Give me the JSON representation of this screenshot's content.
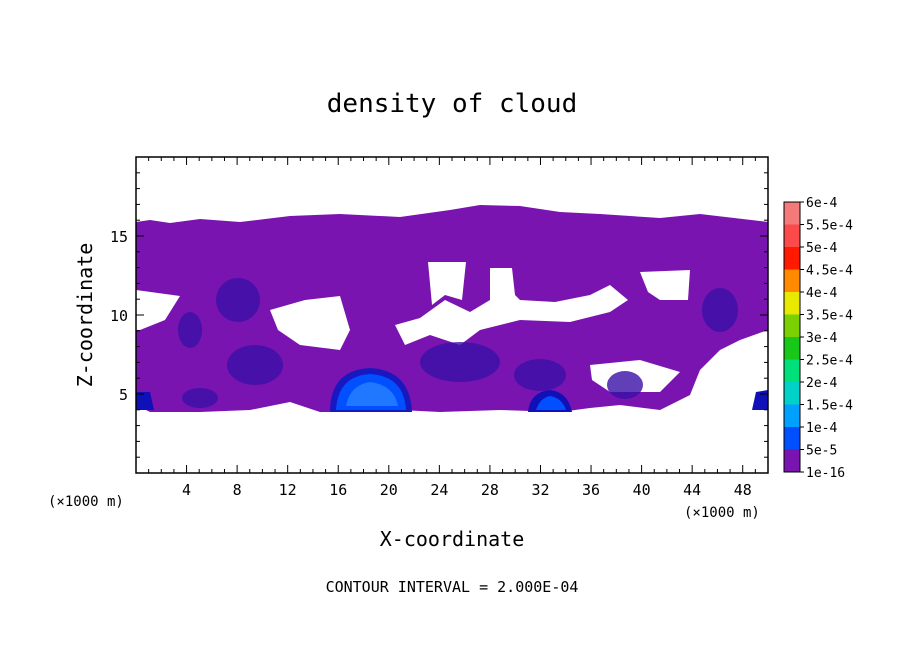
{
  "chart_data": {
    "type": "heatmap",
    "title": "density of cloud",
    "xlabel": "X-coordinate",
    "ylabel": "Z-coordinate",
    "x_unit": "(×1000 m)",
    "footer": "CONTOUR INTERVAL = 2.000E-04",
    "xlim": [
      0,
      50
    ],
    "ylim": [
      0,
      20
    ],
    "x_ticks": [
      4,
      8,
      12,
      16,
      20,
      24,
      28,
      32,
      36,
      40,
      44,
      48
    ],
    "y_ticks": [
      5,
      10,
      15
    ],
    "colorbar": {
      "labels": [
        "6e-4",
        "5.5e-4",
        "5e-4",
        "4.5e-4",
        "4e-4",
        "3.5e-4",
        "3e-4",
        "2.5e-4",
        "2e-4",
        "1.5e-4",
        "1e-4",
        "5e-5",
        "1e-16"
      ],
      "colors": [
        "#f47a7a",
        "#fc4a4a",
        "#ff1a00",
        "#ff8a00",
        "#e8e800",
        "#7ad000",
        "#18c818",
        "#00e07a",
        "#00d2c8",
        "#00a0ff",
        "#0050ff",
        "#1010b8",
        "#7a14b0"
      ]
    },
    "cloud_bands": [
      {
        "x": [
          0,
          50
        ],
        "z": [
          4,
          15.6
        ],
        "level": "1e-16"
      },
      {
        "x": [
          15,
          21
        ],
        "z": [
          4.2,
          6.5
        ],
        "level": "1e-4"
      }
    ]
  }
}
